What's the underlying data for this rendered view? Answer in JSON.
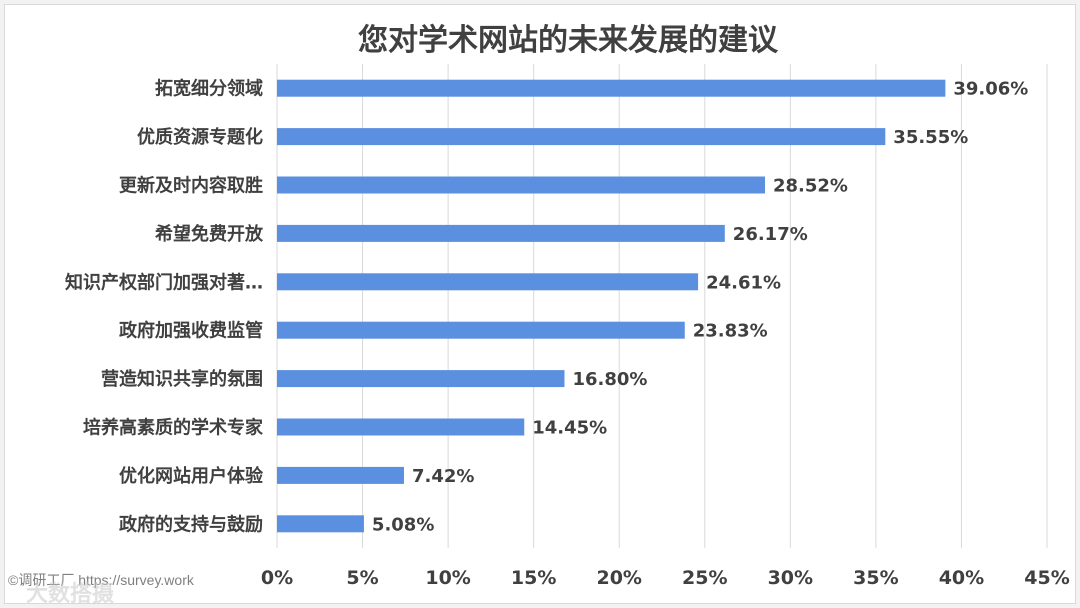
{
  "chart_data": {
    "type": "bar",
    "orientation": "horizontal",
    "title": "您对学术网站的未来发展的建议",
    "categories": [
      "拓宽细分领域",
      "优质资源专题化",
      "更新及时内容取胜",
      "希望免费开放",
      "知识产权部门加强对著…",
      "政府加强收费监管",
      "营造知识共享的氛围",
      "培养高素质的学术专家",
      "优化网站用户体验",
      "政府的支持与鼓励"
    ],
    "values": [
      39.06,
      35.55,
      28.52,
      26.17,
      24.61,
      23.83,
      16.8,
      14.45,
      7.42,
      5.08
    ],
    "value_labels": [
      "39.06%",
      "35.55%",
      "28.52%",
      "26.17%",
      "24.61%",
      "23.83%",
      "16.80%",
      "14.45%",
      "7.42%",
      "5.08%"
    ],
    "xlim": [
      0,
      45
    ],
    "x_ticks": [
      0,
      5,
      10,
      15,
      20,
      25,
      30,
      35,
      40,
      45
    ],
    "x_tick_labels": [
      "0%",
      "5%",
      "10%",
      "15%",
      "20%",
      "25%",
      "30%",
      "35%",
      "40%",
      "45%"
    ],
    "grid": true,
    "legend": "none",
    "colors": {
      "bar": "#5b8fe0",
      "grid": "#d9d9d9",
      "text": "#404040"
    }
  },
  "watermark": {
    "source": "©调研工厂 https://survey.work",
    "brand": "大数搭摄"
  }
}
